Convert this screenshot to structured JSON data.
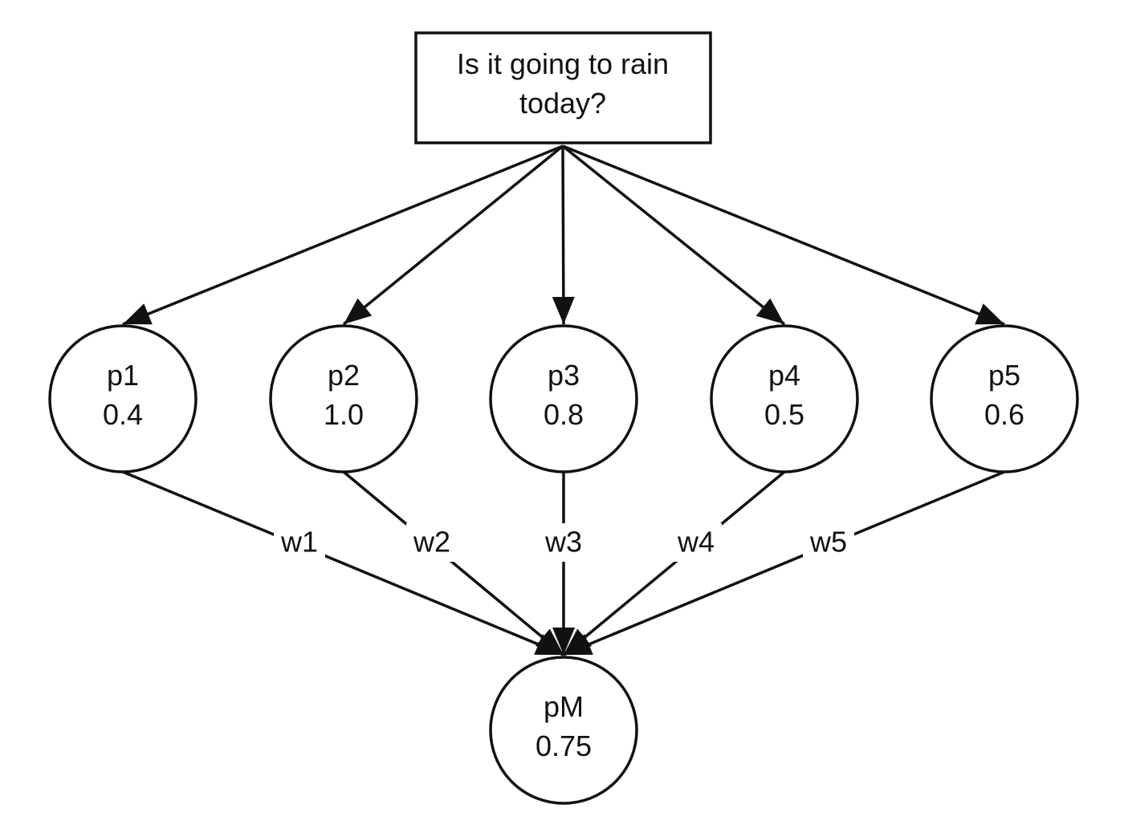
{
  "root": {
    "lines": [
      "Is it going to rain",
      "today?"
    ]
  },
  "predictors": [
    {
      "label": "p1",
      "value": "0.4",
      "weight": "w1"
    },
    {
      "label": "p2",
      "value": "1.0",
      "weight": "w2"
    },
    {
      "label": "p3",
      "value": "0.8",
      "weight": "w3"
    },
    {
      "label": "p4",
      "value": "0.5",
      "weight": "w4"
    },
    {
      "label": "p5",
      "value": "0.6",
      "weight": "w5"
    }
  ],
  "result": {
    "label": "pM",
    "value": "0.75"
  },
  "colors": {
    "stroke": "#111111",
    "background": "#ffffff"
  }
}
